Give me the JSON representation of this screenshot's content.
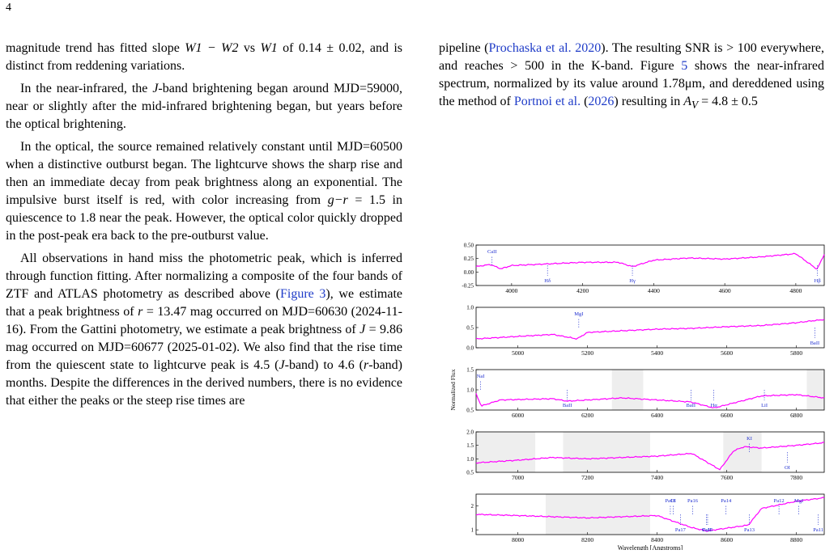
{
  "page_number": "4",
  "left_col": {
    "p1a": "magnitude trend has fitted slope ",
    "p1_math1": "W1 − W2",
    "p1b": " vs ",
    "p1_math2": "W1",
    "p1c": " of 0.14 ± 0.02, and is distinct from reddening variations.",
    "p2a": "In the near-infrared, the ",
    "p2_j": "J",
    "p2b": "-band brightening began around MJD=59000, near or slightly after the mid-infrared brightening began, but years before the optical brightening.",
    "p3a": "In the optical, the source remained relatively constant until MJD=60500 when a distinctive outburst began. The lightcurve shows the sharp rise and then an immediate decay from peak brightness along an exponential. The impulsive burst itself is red, with color increasing from ",
    "p3_gr": "g−r",
    "p3b": " = 1.5 in quiescence to 1.8 near the peak. However, the optical color quickly dropped in the post-peak era back to the pre-outburst value.",
    "p4a": "All observations in hand miss the photometric peak, which is inferred through function fitting. After normalizing a composite of the four bands of ZTF and ATLAS photometry as described above (",
    "p4_figref": "Figure 3",
    "p4b": "), we estimate that a peak brightness of ",
    "p4_r": "r",
    "p4c": " = 13.47 mag occurred on MJD=60630 (2024-11-16). From the Gattini photometry, we estimate a peak brightness of ",
    "p4_j": "J",
    "p4d": " = 9.86 mag occurred on MJD=60677 (2025-01-02). We also find that the rise time from the quiescent state to lightcurve peak is 4.5 (",
    "p4_j2": "J",
    "p4e": "-band) to 4.6 (",
    "p4_r2": "r",
    "p4f": "-band) months. Despite the differences in the derived numbers, there is no evidence that either the peaks or the steep rise times are"
  },
  "right_col": {
    "a": "pipeline (",
    "ref1": "Prochaska et al. 2020",
    "b": "). The resulting SNR is > 100 everywhere, and reaches > 500 in the K-band. Figure ",
    "ref_fig": "5",
    "c": " shows the near-infrared spectrum, normalized by its value around 1.78μm, and dereddened using the method of ",
    "ref2": "Portnoi et al.",
    "c2": " (",
    "ref2y": "2026",
    "d": ") resulting in ",
    "av": "A",
    "av_sub": "V",
    "e": " = 4.8 ± 0.5"
  },
  "colors": {
    "spectrum": "#ff00ff",
    "line_label": "#1f2fd0",
    "telluric_band": "#eeeeee"
  },
  "chart_data": [
    {
      "type": "line",
      "panel": 1,
      "xlim": [
        3900,
        4880
      ],
      "ylim": [
        -0.25,
        0.5
      ],
      "xticks": [
        "4000",
        "4200",
        "4400",
        "4600",
        "4800"
      ],
      "yticks": [
        "-0.25",
        "0.00",
        "0.25",
        "0.50"
      ],
      "lines": [
        {
          "label": "CaII",
          "x": 3945
        },
        {
          "label": "Hδ",
          "x": 4101
        },
        {
          "label": "Hγ",
          "x": 4340
        },
        {
          "label": "Hβ",
          "x": 4861
        }
      ],
      "series": [
        {
          "x": [
            3900,
            3940,
            3970,
            4000,
            4100,
            4200,
            4300,
            4340,
            4400,
            4500,
            4600,
            4700,
            4800,
            4860,
            4880
          ],
          "y": [
            0.1,
            0.14,
            0.06,
            0.12,
            0.15,
            0.18,
            0.18,
            0.1,
            0.22,
            0.26,
            0.24,
            0.28,
            0.34,
            0.05,
            0.33
          ]
        }
      ]
    },
    {
      "type": "line",
      "panel": 2,
      "xlim": [
        4880,
        5880
      ],
      "ylim": [
        0.0,
        1.0
      ],
      "xticks": [
        "5000",
        "5200",
        "5400",
        "5600",
        "5800"
      ],
      "yticks": [
        "0.0",
        "0.5",
        "1.0"
      ],
      "lines": [
        {
          "label": "MgI",
          "x": 5175
        },
        {
          "label": "BaII",
          "x": 5853
        }
      ],
      "series": [
        {
          "x": [
            4880,
            5000,
            5100,
            5170,
            5200,
            5300,
            5400,
            5500,
            5600,
            5700,
            5800,
            5880
          ],
          "y": [
            0.22,
            0.28,
            0.33,
            0.22,
            0.38,
            0.42,
            0.46,
            0.48,
            0.52,
            0.55,
            0.62,
            0.7
          ]
        }
      ]
    },
    {
      "type": "line",
      "panel": 3,
      "xlim": [
        5880,
        6880
      ],
      "ylim": [
        0.5,
        1.5
      ],
      "xticks": [
        "6000",
        "6200",
        "6400",
        "6600",
        "6800"
      ],
      "yticks": [
        "0.5",
        "1.0",
        "1.5"
      ],
      "ylabel": "Normalized Flux",
      "lines": [
        {
          "label": "NaI",
          "x": 5893
        },
        {
          "label": "BaII",
          "x": 6142
        },
        {
          "label": "BaII",
          "x": 6497
        },
        {
          "label": "Hα",
          "x": 6563
        },
        {
          "label": "LiI",
          "x": 6708
        }
      ],
      "series": [
        {
          "x": [
            5880,
            5895,
            5950,
            6100,
            6142,
            6300,
            6497,
            6563,
            6700,
            6800,
            6880
          ],
          "y": [
            0.9,
            0.6,
            0.75,
            0.78,
            0.72,
            0.8,
            0.7,
            0.55,
            0.85,
            0.88,
            0.8
          ]
        }
      ]
    },
    {
      "type": "line",
      "panel": 4,
      "xlim": [
        6880,
        7880
      ],
      "ylim": [
        0.5,
        2.0
      ],
      "xticks": [
        "7000",
        "7200",
        "7400",
        "7600",
        "7800"
      ],
      "yticks": [
        "0.5",
        "1.0",
        "1.5",
        "2.0"
      ],
      "lines": [
        {
          "label": "KI",
          "x": 7665
        },
        {
          "label": "OI",
          "x": 7774
        }
      ],
      "series": [
        {
          "x": [
            6880,
            7000,
            7100,
            7200,
            7300,
            7400,
            7500,
            7580,
            7620,
            7650,
            7700,
            7800,
            7880
          ],
          "y": [
            0.85,
            0.95,
            1.05,
            1.0,
            1.05,
            1.1,
            1.2,
            0.6,
            1.3,
            1.45,
            1.4,
            1.5,
            1.6
          ]
        }
      ]
    },
    {
      "type": "line",
      "panel": 5,
      "xlim": [
        7880,
        8880
      ],
      "ylim": [
        0.8,
        2.5
      ],
      "xticks": [
        "8000",
        "8200",
        "8400",
        "8600",
        "8800"
      ],
      "yticks": [
        "1",
        "2"
      ],
      "xlabel": "Wavelength [Angstroms]",
      "lines": [
        {
          "label": "Pa18",
          "x": 8438
        },
        {
          "label": "Pa17",
          "x": 8467
        },
        {
          "label": "Pa16",
          "x": 8502
        },
        {
          "label": "Pa15",
          "x": 8545
        },
        {
          "label": "Pa14",
          "x": 8598
        },
        {
          "label": "Pa13",
          "x": 8665
        },
        {
          "label": "Pa12",
          "x": 8750
        },
        {
          "label": "Pa11",
          "x": 8863
        },
        {
          "label": "OI",
          "x": 8446
        },
        {
          "label": "CaII",
          "x": 8542
        },
        {
          "label": "MgI",
          "x": 8807
        }
      ],
      "series": [
        {
          "x": [
            7880,
            8000,
            8100,
            8200,
            8300,
            8400,
            8498,
            8542,
            8662,
            8700,
            8800,
            8880
          ],
          "y": [
            1.65,
            1.6,
            1.55,
            1.5,
            1.55,
            1.6,
            1.1,
            0.95,
            1.2,
            1.9,
            2.2,
            2.35
          ]
        }
      ]
    }
  ]
}
